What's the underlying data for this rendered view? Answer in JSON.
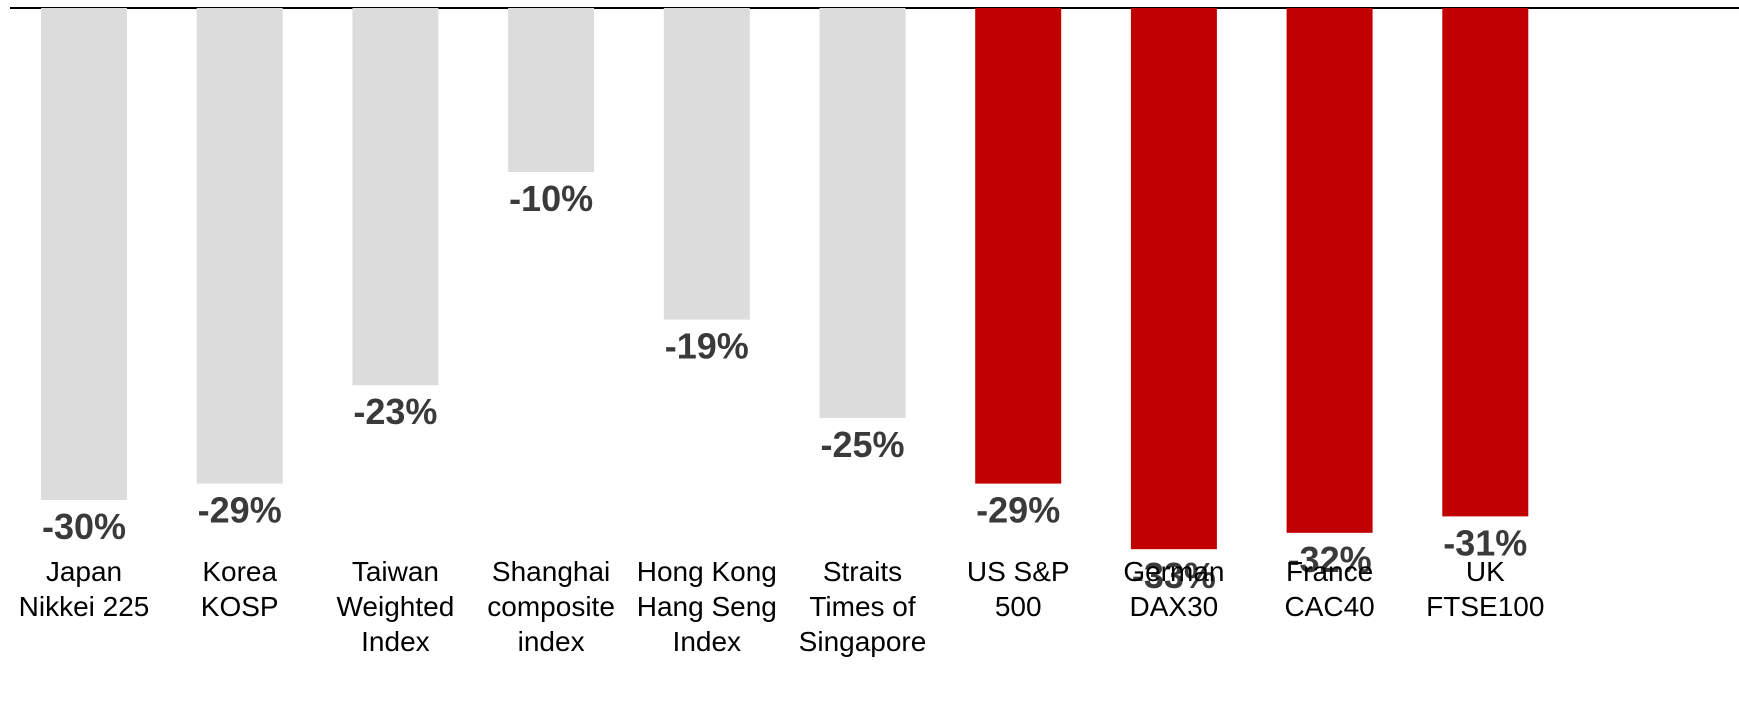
{
  "chart_data": {
    "type": "bar",
    "categories": [
      [
        "Japan",
        "Nikkei 225"
      ],
      [
        "Korea",
        "KOSP"
      ],
      [
        "Taiwan",
        "Weighted",
        "Index"
      ],
      [
        "Shanghai",
        "composite",
        "index"
      ],
      [
        "Hong Kong",
        "Hang Seng",
        "Index"
      ],
      [
        "Straits",
        "Times of",
        "Singapore"
      ],
      [
        "US S&P",
        "500"
      ],
      [
        "German",
        "DAX30"
      ],
      [
        "France",
        "CAC40"
      ],
      [
        "UK",
        "FTSE100"
      ]
    ],
    "values": [
      -30,
      -29,
      -23,
      -10,
      -19,
      -25,
      -29,
      -33,
      -32,
      -31
    ],
    "value_labels": [
      "-30%",
      "-29%",
      "-23%",
      "-10%",
      "-19%",
      "-25%",
      "-29%",
      "-33%",
      "-32%",
      "-31%"
    ],
    "bar_colors": [
      "#dcdcdc",
      "#dcdcdc",
      "#dcdcdc",
      "#dcdcdc",
      "#dcdcdc",
      "#dcdcdc",
      "#c00000",
      "#c00000",
      "#c00000",
      "#c00000"
    ],
    "ylim": [
      -35,
      0
    ],
    "grid": false,
    "legend": "none",
    "title": "",
    "xlabel": "",
    "ylabel": ""
  }
}
